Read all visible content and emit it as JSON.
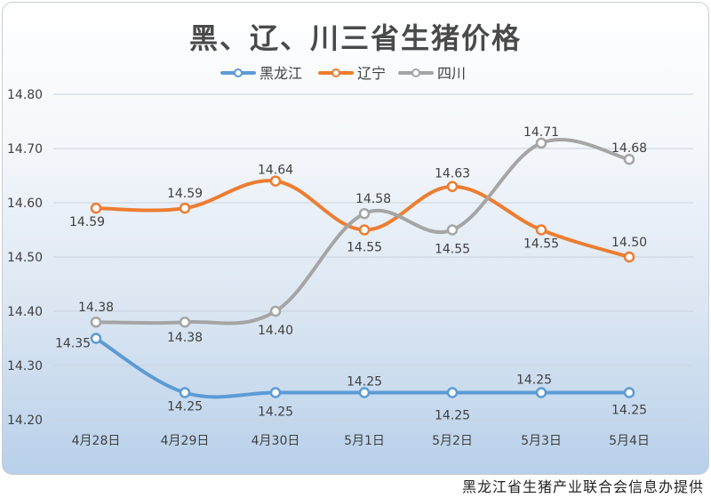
{
  "chart_data": {
    "type": "line",
    "title": "黑、辽、川三省生猪价格",
    "categories": [
      "4月28日",
      "4月29日",
      "4月30日",
      "5月1日",
      "5月2日",
      "5月3日",
      "5月4日"
    ],
    "ylim": [
      14.2,
      14.8
    ],
    "yticks": [
      "14.20",
      "14.30",
      "14.40",
      "14.50",
      "14.60",
      "14.70",
      "14.80"
    ],
    "grid": true,
    "legend_position": "top-center",
    "series": [
      {
        "name": "黑龙江",
        "color": "#5b9bd5",
        "values": [
          14.35,
          14.25,
          14.25,
          14.25,
          14.25,
          14.25,
          14.25
        ],
        "labels": [
          "14.35",
          "14.25",
          "14.25",
          "14.25",
          "14.25",
          "14.25",
          "14.25"
        ]
      },
      {
        "name": "辽宁",
        "color": "#ed7d31",
        "values": [
          14.59,
          14.59,
          14.64,
          14.55,
          14.63,
          14.55,
          14.5
        ],
        "labels": [
          "14.59",
          "14.59",
          "14.64",
          "14.55",
          "14.63",
          "14.55",
          "14.50"
        ]
      },
      {
        "name": "四川",
        "color": "#a5a5a5",
        "values": [
          14.38,
          14.38,
          14.4,
          14.58,
          14.55,
          14.71,
          14.68
        ],
        "labels": [
          "14.38",
          "14.38",
          "14.40",
          "14.58",
          "14.55",
          "14.71",
          "14.68"
        ]
      }
    ]
  },
  "footer": {
    "credit": "黑龙江省生猪产业联合会信息办提供"
  }
}
